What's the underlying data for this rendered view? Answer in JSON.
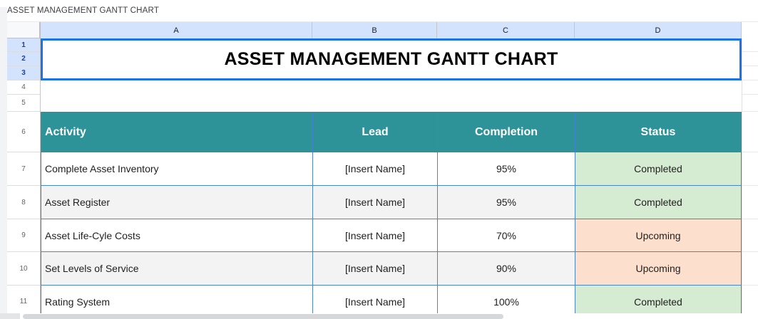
{
  "app": {
    "sheet_name": "ASSET MANAGEMENT GANTT CHART"
  },
  "grid": {
    "column_headers": [
      "A",
      "B",
      "C",
      "D"
    ],
    "row_numbers": [
      "1",
      "2",
      "3",
      "4",
      "5",
      "6",
      "7",
      "8",
      "9",
      "10",
      "11"
    ],
    "selected_rows": [
      1,
      2,
      3
    ],
    "selected_columns": [
      "A",
      "B",
      "C",
      "D"
    ]
  },
  "title_cell": {
    "text": "ASSET MANAGEMENT GANTT CHART"
  },
  "table": {
    "headers": [
      "Activity",
      "Lead",
      "Completion",
      "Status"
    ],
    "rows": [
      {
        "activity": "Complete Asset Inventory",
        "lead": "[Insert Name]",
        "completion": "95%",
        "status": "Completed",
        "status_type": "completed"
      },
      {
        "activity": "Asset Register",
        "lead": "[Insert Name]",
        "completion": "95%",
        "status": "Completed",
        "status_type": "completed"
      },
      {
        "activity": "Asset Life-Cyle Costs",
        "lead": "[Insert Name]",
        "completion": "70%",
        "status": "Upcoming",
        "status_type": "upcoming"
      },
      {
        "activity": "Set Levels of Service",
        "lead": "[Insert Name]",
        "completion": "90%",
        "status": "Upcoming",
        "status_type": "upcoming"
      },
      {
        "activity": "Rating System",
        "lead": "[Insert Name]",
        "completion": "100%",
        "status": "Completed",
        "status_type": "completed"
      }
    ]
  },
  "colors": {
    "selection_border": "#1a73e8",
    "selected_header_bg": "#d3e3fd",
    "table_header_teal": "#2e9399",
    "zebra_gray": "#f3f3f3",
    "grid_border_blue": "#4a86c8",
    "status_completed_bg": "#d6ecd2",
    "status_upcoming_bg": "#fce0cd"
  }
}
